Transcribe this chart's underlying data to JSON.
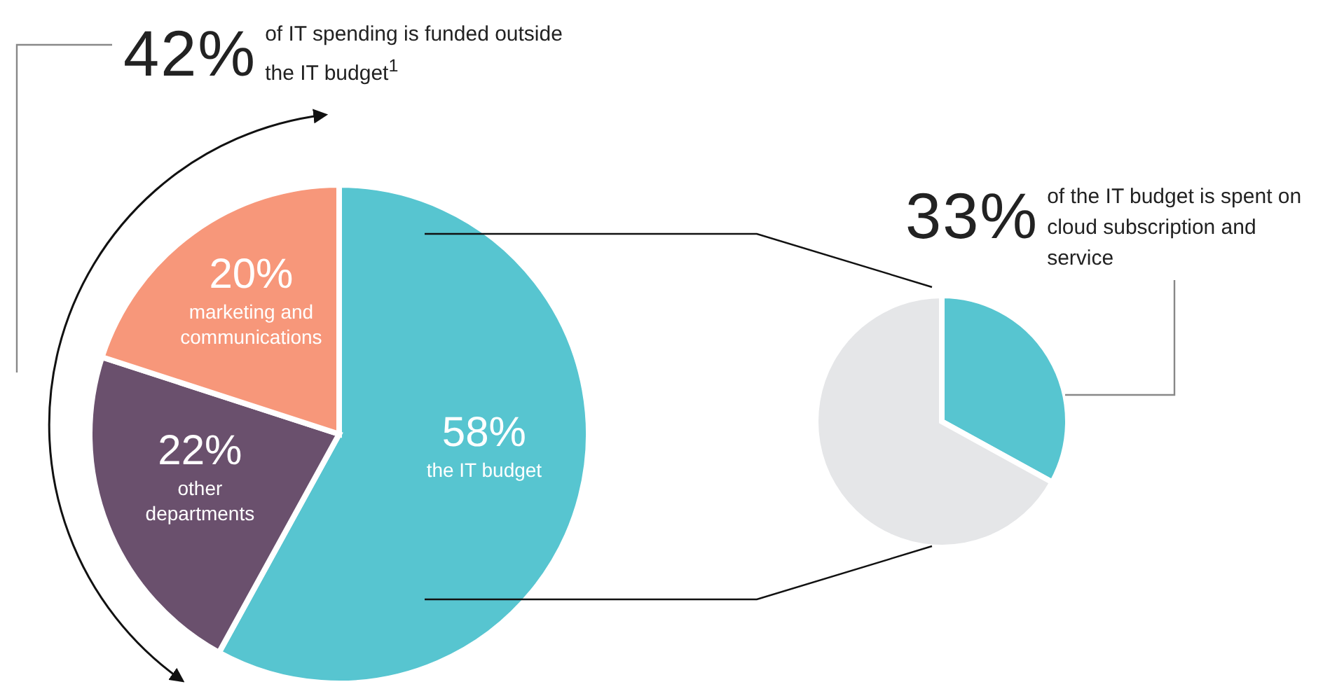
{
  "chart_data": [
    {
      "type": "pie",
      "categories": [
        "the IT budget",
        "other departments",
        "marketing and communications"
      ],
      "values": [
        58,
        22,
        20
      ],
      "colors": [
        "#57c5d0",
        "#6a506d",
        "#f7977a"
      ],
      "value_labels": [
        "58%",
        "22%",
        "20%"
      ],
      "annotations": [
        "42%",
        "of IT spending is funded outside the IT budget$^{1}$"
      ]
    },
    {
      "type": "pie",
      "categories": [
        null,
        null
      ],
      "values": [
        33,
        67
      ],
      "colors": [
        "#57c5d0",
        "#e5e6e8"
      ],
      "annotations": [
        "33%",
        "of the IT budget is spent on cloud subscription and service"
      ]
    }
  ]
}
